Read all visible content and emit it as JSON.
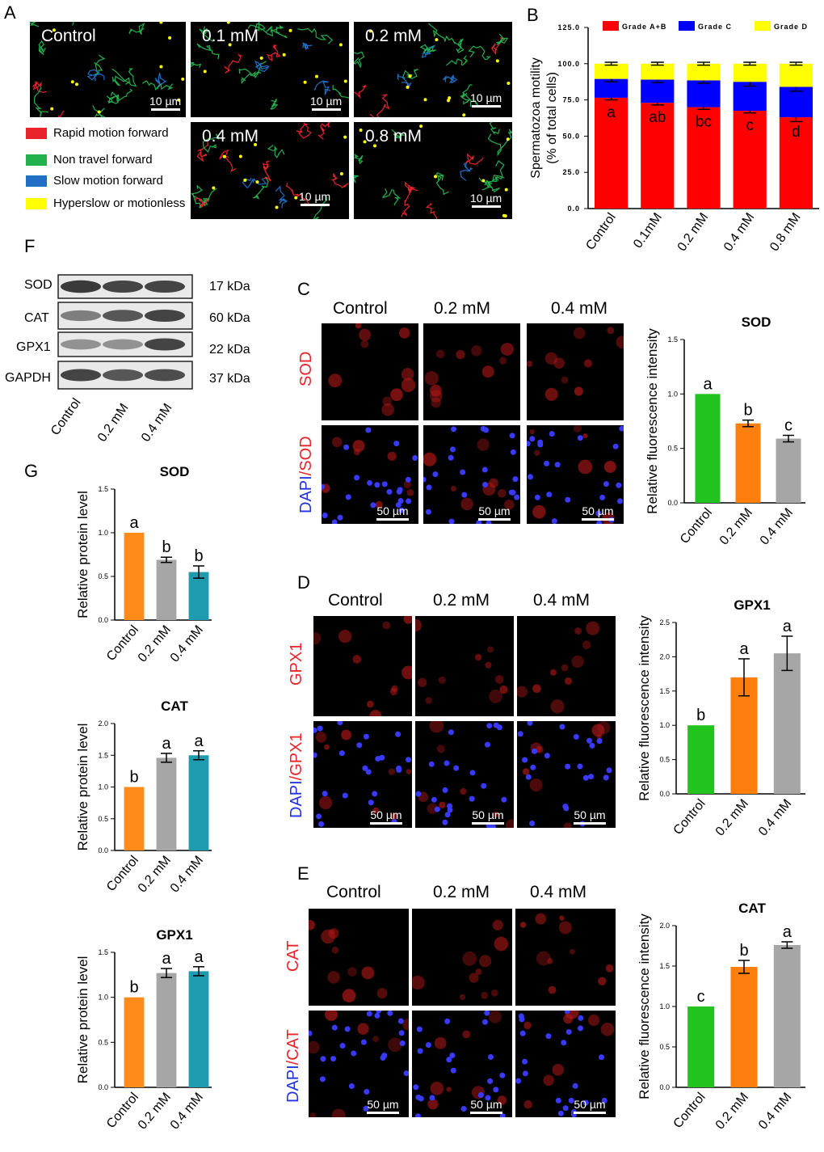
{
  "panels": {
    "A": "A",
    "B": "B",
    "C": "C",
    "D": "D",
    "E": "E",
    "F": "F",
    "G": "G"
  },
  "panelA": {
    "fields": [
      "Control",
      "0.1 mM",
      "0.2 mM",
      "0.4 mM",
      "0.8 mM"
    ],
    "scale_bar": "10 µm",
    "legend": [
      {
        "label": "Rapid motion forward",
        "color": "#e8242a"
      },
      {
        "label": "Non travel forward",
        "color": "#22b14c"
      },
      {
        "label": "Slow motion forward",
        "color": "#1f6fc4"
      },
      {
        "label": "Hyperslow or motionless",
        "color": "#ffff00"
      }
    ]
  },
  "panelB": {
    "chart_data": {
      "type": "bar",
      "stacked": true,
      "categories": [
        "Control",
        "0.1mM",
        "0.2 mM",
        "0.4 mM",
        "0.8 mM"
      ],
      "series": [
        {
          "name": "Grade A+B",
          "color": "#ff0000",
          "values": [
            76.5,
            73,
            70,
            67.5,
            63
          ],
          "errors": [
            1.5,
            1.5,
            1.5,
            1.5,
            3
          ]
        },
        {
          "name": "Grade C",
          "color": "#0000ff",
          "values": [
            13,
            16,
            18.5,
            20,
            21
          ],
          "errors": [
            2,
            2,
            2,
            3,
            3
          ]
        },
        {
          "name": "Grade D",
          "color": "#ffff00",
          "values": [
            10.5,
            11,
            11.5,
            12.5,
            16
          ],
          "errors": [
            1,
            1,
            1,
            1,
            1
          ]
        }
      ],
      "letters": [
        "a",
        "ab",
        "bc",
        "c",
        "d"
      ],
      "ylabel": "Spermatozoa motility\n(% of total cells)",
      "ylim": [
        0,
        125
      ],
      "yticks": [
        "0.0",
        "25.0",
        "50.0",
        "75.0",
        "100.0",
        "125.0"
      ],
      "legend_position": "top"
    }
  },
  "panelF": {
    "bands": [
      {
        "name": "SOD",
        "kda": "17 kDa"
      },
      {
        "name": "CAT",
        "kda": "60 kDa"
      },
      {
        "name": "GPX1",
        "kda": "22 kDa"
      },
      {
        "name": "GAPDH",
        "kda": "37 kDa"
      }
    ],
    "lanes": [
      "Control",
      "0.2 mM",
      "0.4 mM"
    ]
  },
  "if_panels": [
    {
      "key": "C",
      "marker": "SOD",
      "cols": [
        "Control",
        "0.2 mM",
        "0.4 mM"
      ],
      "row2_a": "DAPI",
      "row2_b": "/SOD",
      "scale": "50 µm"
    },
    {
      "key": "D",
      "marker": "GPX1",
      "cols": [
        "Control",
        "0.2 mM",
        "0.4 mM"
      ],
      "row2_a": "DAPI",
      "row2_b": "/GPX1",
      "scale": "50 µm"
    },
    {
      "key": "E",
      "marker": "CAT",
      "cols": [
        "Control",
        "0.2 mM",
        "0.4 mM"
      ],
      "row2_a": "DAPI",
      "row2_b": "/CAT",
      "scale": "50 µm"
    }
  ],
  "chart_data": [
    {
      "id": "C-bar",
      "type": "bar",
      "title": "SOD",
      "categories": [
        "Control",
        "0.2 mM",
        "0.4 mM"
      ],
      "values": [
        1.0,
        0.73,
        0.59
      ],
      "errors": [
        0,
        0.03,
        0.03
      ],
      "letters": [
        "a",
        "b",
        "c"
      ],
      "colors": [
        "#22c31f",
        "#ff7f0e",
        "#a6a6a6"
      ],
      "ylabel": "Relative fluorescence intensity",
      "ylim": [
        0,
        1.5
      ],
      "yticks": [
        "0.0",
        "0.5",
        "1.0",
        "1.5"
      ]
    },
    {
      "id": "D-bar",
      "type": "bar",
      "title": "GPX1",
      "categories": [
        "Control",
        "0.2 mM",
        "0.4 mM"
      ],
      "values": [
        1.0,
        1.7,
        2.05
      ],
      "errors": [
        0,
        0.27,
        0.25
      ],
      "letters": [
        "b",
        "a",
        "a"
      ],
      "colors": [
        "#22c31f",
        "#ff7f0e",
        "#a6a6a6"
      ],
      "ylabel": "Relative fluorescence intensity",
      "ylim": [
        0,
        2.5
      ],
      "yticks": [
        "0.0",
        "0.5",
        "1.0",
        "1.5",
        "2.0",
        "2.5"
      ]
    },
    {
      "id": "E-bar",
      "type": "bar",
      "title": "CAT",
      "categories": [
        "Control",
        "0.2 mM",
        "0.4 mM"
      ],
      "values": [
        1.0,
        1.49,
        1.76
      ],
      "errors": [
        0,
        0.08,
        0.04
      ],
      "letters": [
        "c",
        "b",
        "a"
      ],
      "colors": [
        "#22c31f",
        "#ff7f0e",
        "#a6a6a6"
      ],
      "ylabel": "Relative fluorescence intensity",
      "ylim": [
        0,
        2.0
      ],
      "yticks": [
        "0.0",
        "0.5",
        "1.0",
        "1.5",
        "2.0"
      ]
    },
    {
      "id": "G-sod",
      "type": "bar",
      "title": "SOD",
      "categories": [
        "Control",
        "0.2 mM",
        "0.4 mM"
      ],
      "values": [
        1.0,
        0.69,
        0.55
      ],
      "errors": [
        0,
        0.03,
        0.07
      ],
      "letters": [
        "a",
        "b",
        "b"
      ],
      "colors": [
        "#ff8c1a",
        "#a6a6a6",
        "#1f9bb0"
      ],
      "ylabel": "Relative protein level",
      "ylim": [
        0,
        1.5
      ],
      "yticks": [
        "0.0",
        "0.5",
        "1.0",
        "1.5"
      ]
    },
    {
      "id": "G-cat",
      "type": "bar",
      "title": "CAT",
      "categories": [
        "Control",
        "0.2 mM",
        "0.4 mM"
      ],
      "values": [
        1.0,
        1.46,
        1.5
      ],
      "errors": [
        0,
        0.07,
        0.07
      ],
      "letters": [
        "b",
        "a",
        "a"
      ],
      "colors": [
        "#ff8c1a",
        "#a6a6a6",
        "#1f9bb0"
      ],
      "ylabel": "Relative protein level",
      "ylim": [
        0,
        2.0
      ],
      "yticks": [
        "0.0",
        "0.5",
        "1.0",
        "1.5",
        "2.0"
      ]
    },
    {
      "id": "G-gpx",
      "type": "bar",
      "title": "GPX1",
      "categories": [
        "Control",
        "0.2 mM",
        "0.4 mM"
      ],
      "values": [
        1.0,
        1.27,
        1.29
      ],
      "errors": [
        0,
        0.05,
        0.05
      ],
      "letters": [
        "b",
        "a",
        "a"
      ],
      "colors": [
        "#ff8c1a",
        "#a6a6a6",
        "#1f9bb0"
      ],
      "ylabel": "Relative protein level",
      "ylim": [
        0,
        1.5
      ],
      "yticks": [
        "0.0",
        "0.5",
        "1.0",
        "1.5"
      ]
    }
  ]
}
